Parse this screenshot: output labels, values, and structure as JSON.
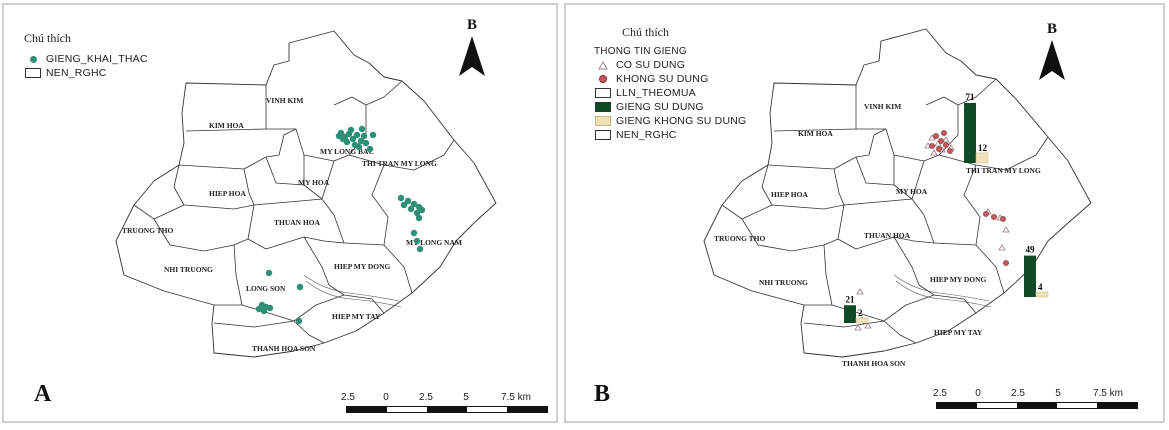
{
  "panel_a": {
    "letter": "A",
    "north_label": "B",
    "legend": {
      "title": "Chú thích",
      "items": [
        {
          "label": "GIENG_KHAI_THAC",
          "symbol": "teal-dot-icon"
        },
        {
          "label": "NEN_RGHC",
          "symbol": "white-box-icon"
        }
      ]
    },
    "communes": [
      "VINH KIM",
      "KIM HOA",
      "MY LONG BAC",
      "THI TRAN MY LONG",
      "HIEP HOA",
      "MY HOA",
      "TRUONG THO",
      "THUAN HOA",
      "MY LONG NAM",
      "NHI TRUONG",
      "HIEP MY DONG",
      "LONG SON",
      "HIEP MY TAY",
      "THANH HOA SON"
    ],
    "scale_labels": [
      "2.5",
      "0",
      "2.5",
      "5",
      "7.5 km"
    ]
  },
  "panel_b": {
    "letter": "B",
    "north_label": "B",
    "legend": {
      "title": "Chú thích",
      "subtitle": "THONG TIN GIENG",
      "items": [
        {
          "label": "CO SU DUNG",
          "symbol": "triangle-icon"
        },
        {
          "label": "KHONG SU DUNG",
          "symbol": "pink-dot-icon"
        },
        {
          "label": "LLN_THEOMUA",
          "symbol": "white-box-icon"
        },
        {
          "label": "GIENG SU DUNG",
          "symbol": "dark-green-box-icon"
        },
        {
          "label": "GIENG KHONG SU DUNG",
          "symbol": "beige-box-icon"
        },
        {
          "label": "NEN_RGHC",
          "symbol": "white-box-icon"
        }
      ]
    },
    "communes": [
      "VINH KIM",
      "KIM HOA",
      "THI TRAN MY LONG",
      "HIEP HOA",
      "MY HOA",
      "TRUONG THO",
      "THUAN HOA",
      "NHI TRUONG",
      "HIEP MY DONG",
      "HIEP MY TAY",
      "THANH HOA SON"
    ],
    "bar_groups": [
      {
        "used": 71,
        "unused": 12
      },
      {
        "used": 49,
        "unused": 4
      },
      {
        "used": 21,
        "unused": 2
      }
    ],
    "scale_labels": [
      "2.5",
      "0",
      "2.5",
      "5",
      "7.5 km"
    ]
  },
  "colors": {
    "well_teal": "#2e8f77",
    "used_dark_green": "#0f4a26",
    "unused_beige": "#efe1b8",
    "unused_pink": "#c8585f",
    "boundary": "#333333"
  }
}
